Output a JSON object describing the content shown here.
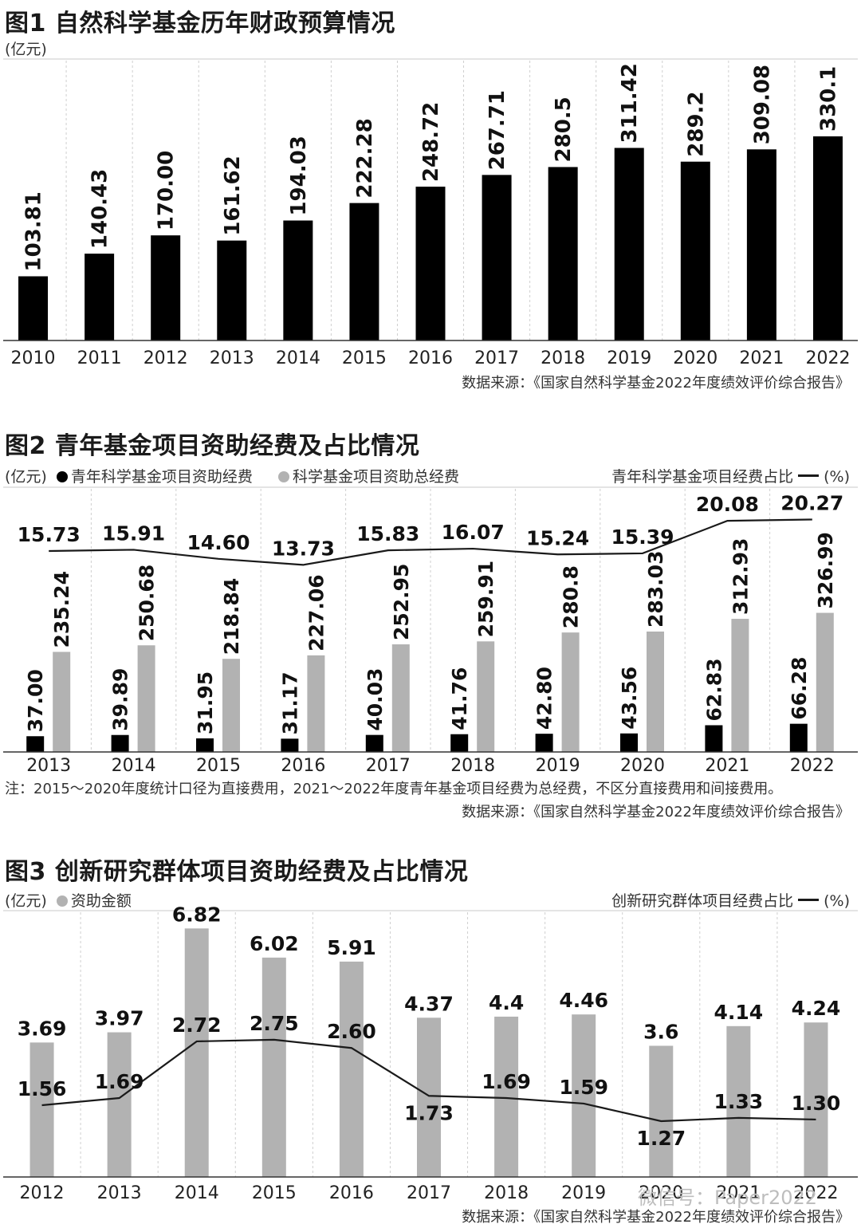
{
  "chart_data": [
    {
      "type": "bar",
      "title": "图1 自然科学基金历年财政预算情况",
      "unit_label": "(亿元)",
      "categories": [
        "2010",
        "2011",
        "2012",
        "2013",
        "2014",
        "2015",
        "2016",
        "2017",
        "2018",
        "2019",
        "2020",
        "2021",
        "2022"
      ],
      "value_labels": [
        "103.81",
        "140.43",
        "170.00",
        "161.62",
        "194.03",
        "222.28",
        "248.72",
        "267.71",
        "280.5",
        "311.42",
        "289.2",
        "309.08",
        "330.1"
      ],
      "values": [
        103.81,
        140.43,
        170.0,
        161.62,
        194.03,
        222.28,
        248.72,
        267.71,
        280.5,
        311.42,
        289.2,
        309.08,
        330.1
      ],
      "ylim": [
        0,
        375
      ],
      "bar_color": "#000000",
      "grid": "vertical dashed",
      "source": "数据来源：《国家自然科学基金2022年度绩效评价综合报告》"
    },
    {
      "type": "bar",
      "title": "图2 青年基金项目资助经费及占比情况",
      "unit_label": "(亿元)",
      "legend_black": "青年科学基金项目资助经费",
      "legend_gray": "科学基金项目资助总经费",
      "line_legend": "青年科学基金项目经费占比",
      "line_unit": "(%)",
      "categories": [
        "2013",
        "2014",
        "2015",
        "2016",
        "2017",
        "2018",
        "2019",
        "2020",
        "2021",
        "2022"
      ],
      "series": [
        {
          "name": "青年科学基金项目资助经费",
          "color": "#000000",
          "values": [
            37.0,
            39.89,
            31.95,
            31.17,
            40.03,
            41.76,
            42.8,
            43.56,
            62.83,
            66.28
          ],
          "labels": [
            "37.00",
            "39.89",
            "31.95",
            "31.17",
            "40.03",
            "41.76",
            "42.80",
            "43.56",
            "62.83",
            "66.28"
          ]
        },
        {
          "name": "科学基金项目资助总经费",
          "color": "#b2b2b2",
          "values": [
            235.24,
            250.68,
            218.84,
            227.06,
            252.95,
            259.91,
            280.8,
            283.03,
            312.93,
            326.99
          ],
          "labels": [
            "235.24",
            "250.68",
            "218.84",
            "227.06",
            "252.95",
            "259.91",
            "280.8",
            "283.03",
            "312.93",
            "326.99"
          ]
        },
        {
          "name": "青年科学基金项目经费占比",
          "type": "line",
          "values": [
            15.73,
            15.91,
            14.6,
            13.73,
            15.83,
            16.07,
            15.24,
            15.39,
            20.08,
            20.27
          ],
          "labels": [
            "15.73",
            "15.91",
            "14.60",
            "13.73",
            "15.83",
            "16.07",
            "15.24",
            "15.39",
            "20.08",
            "20.27"
          ]
        }
      ],
      "note": "注：2015～2020年度统计口径为直接费用，2021～2022年度青年基金项目经费为总经费，不区分直接费用和间接费用。",
      "source": "数据来源：《国家自然科学基金2022年度绩效评价综合报告》"
    },
    {
      "type": "bar",
      "title": "图3 创新研究群体项目资助经费及占比情况",
      "unit_label": "(亿元)",
      "legend_gray": "资助金额",
      "line_legend": "创新研究群体项目经费占比",
      "line_unit": "(%)",
      "categories": [
        "2012",
        "2013",
        "2014",
        "2015",
        "2016",
        "2017",
        "2018",
        "2019",
        "2020",
        "2021",
        "2022"
      ],
      "series": [
        {
          "name": "资助金额",
          "color": "#b2b2b2",
          "values": [
            3.69,
            3.97,
            6.82,
            6.02,
            5.91,
            4.37,
            4.4,
            4.46,
            3.6,
            4.14,
            4.24
          ],
          "labels": [
            "3.69",
            "3.97",
            "6.82",
            "6.02",
            "5.91",
            "4.37",
            "4.4",
            "4.46",
            "3.6",
            "4.14",
            "4.24"
          ]
        },
        {
          "name": "创新研究群体项目经费占比",
          "type": "line",
          "values": [
            1.56,
            1.69,
            2.72,
            2.75,
            2.6,
            1.73,
            1.69,
            1.59,
            1.27,
            1.33,
            1.3
          ],
          "labels": [
            "1.56",
            "1.69",
            "2.72",
            "2.75",
            "2.60",
            "1.73",
            "1.69",
            "1.59",
            "1.27",
            "1.33",
            "1.30"
          ]
        }
      ],
      "source": "数据来源：《国家自然科学基金2022年度绩效评价综合报告》"
    }
  ],
  "watermark": "微信号：Paper2022"
}
